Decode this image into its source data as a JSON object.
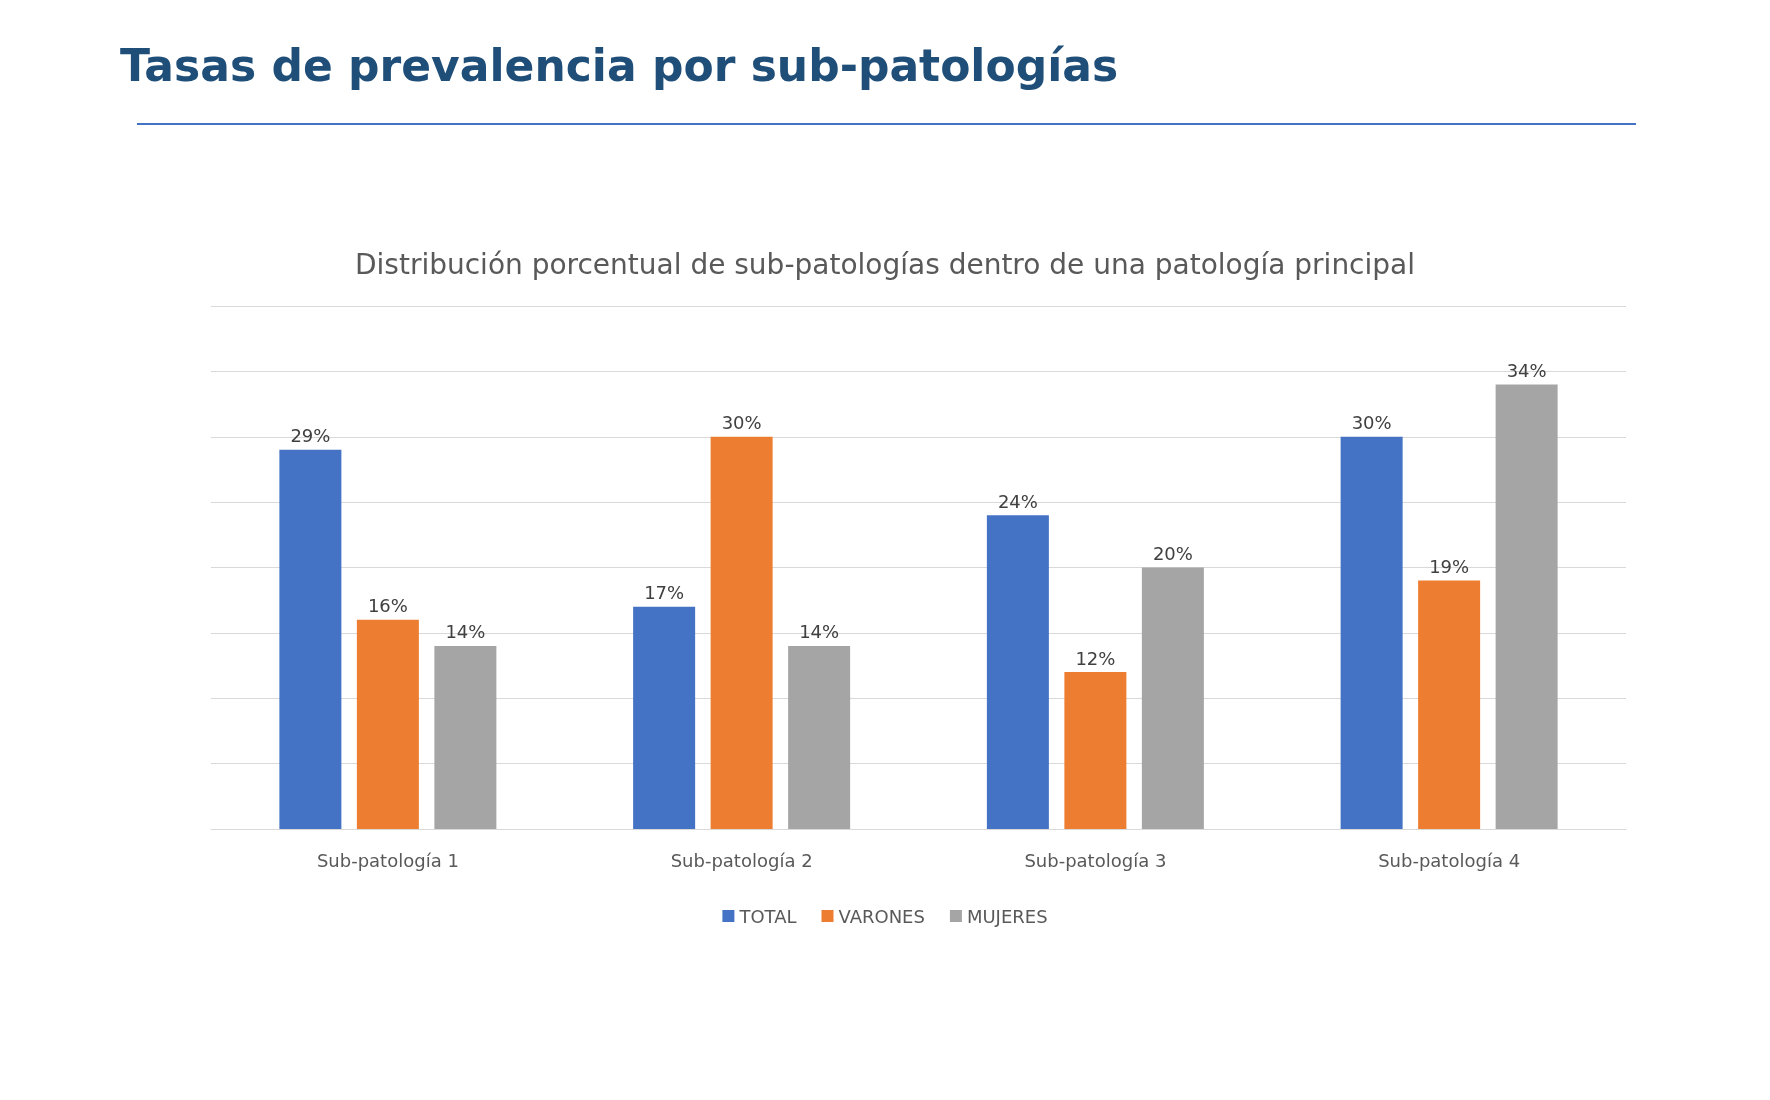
{
  "chart_data": {
    "type": "bar",
    "title": "Tasas de prevalencia por sub-patologías",
    "subtitle": "Distribución porcentual de sub-patologías dentro de una patología principal",
    "categories": [
      "Sub-patología 1",
      "Sub-patología 2",
      "Sub-patología 3",
      "Sub-patología 4"
    ],
    "series": [
      {
        "name": "TOTAL",
        "color": "#4472c4",
        "values": [
          29,
          17,
          24,
          30
        ],
        "value_labels": [
          "29%",
          "17%",
          "24%",
          "30%"
        ]
      },
      {
        "name": "VARONES",
        "color": "#ed7d31",
        "values": [
          16,
          30,
          12,
          19
        ],
        "value_labels": [
          "16%",
          "30%",
          "12%",
          "19%"
        ]
      },
      {
        "name": "MUJERES",
        "color": "#a5a5a5",
        "values": [
          14,
          14,
          20,
          34
        ],
        "value_labels": [
          "14%",
          "14%",
          "20%",
          "34%"
        ]
      }
    ],
    "ylim": [
      0,
      40
    ],
    "yticks": [
      {
        "value": 0,
        "label": null
      },
      {
        "value": 5,
        "label": null
      },
      {
        "value": 10,
        "label": null
      },
      {
        "value": 15,
        "label": null
      },
      {
        "value": 20,
        "label": null
      },
      {
        "value": 25,
        "label": null
      },
      {
        "value": 30,
        "label": null
      },
      {
        "value": 35,
        "label": null
      },
      {
        "value": 40,
        "label": null
      }
    ],
    "tick_labels": "x",
    "grid": "y",
    "legend": "bottom"
  }
}
